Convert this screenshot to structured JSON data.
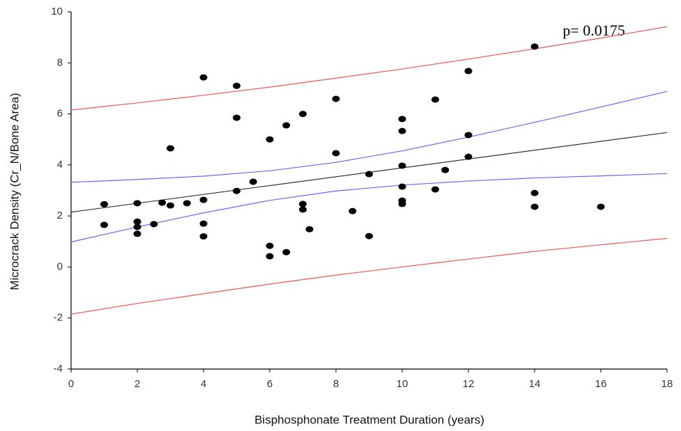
{
  "chart_data": {
    "type": "scatter",
    "x_label": "Bisphosphonate Treatment Duration (years)",
    "y_label": "Microcrack Density (Cr_N/Bone Area)",
    "annotation": "p= 0.0175",
    "xlim": [
      0,
      18
    ],
    "xticks": [
      0,
      2,
      4,
      6,
      8,
      10,
      12,
      14,
      16,
      18
    ],
    "ylim": [
      -4,
      10
    ],
    "yticks": [
      -4,
      -2,
      0,
      2,
      4,
      6,
      8,
      10
    ],
    "grid": false,
    "series": [
      {
        "type": "scatter",
        "color": "#000000",
        "x": [
          1,
          1,
          2,
          2,
          2,
          2,
          2.5,
          2.75,
          3,
          3,
          3.5,
          4,
          4,
          4,
          4,
          5,
          5,
          5,
          5.5,
          6,
          6,
          6,
          6.5,
          6.5,
          7,
          7,
          7,
          7.2,
          8,
          8,
          8.5,
          9,
          9,
          10,
          10,
          10,
          10,
          10,
          10,
          11,
          11,
          11.3,
          12,
          12,
          12,
          14,
          14,
          14,
          16
        ],
        "values": [
          2.46,
          1.65,
          2.5,
          1.78,
          1.57,
          1.3,
          1.68,
          2.52,
          2.41,
          4.65,
          2.5,
          7.43,
          2.63,
          1.7,
          1.2,
          7.1,
          5.85,
          2.98,
          3.34,
          5.0,
          0.83,
          0.42,
          5.55,
          0.58,
          6.0,
          2.47,
          2.25,
          1.48,
          6.59,
          4.46,
          2.19,
          3.64,
          1.21,
          5.8,
          5.33,
          3.97,
          3.15,
          2.6,
          2.47,
          6.56,
          3.04,
          3.8,
          7.68,
          5.17,
          4.32,
          8.64,
          2.9,
          2.36,
          2.36
        ]
      },
      {
        "type": "line",
        "color": "#333333",
        "x": [
          0,
          18
        ],
        "values": [
          2.15,
          5.27
        ]
      },
      {
        "type": "line",
        "color": "#6666ff",
        "x": [
          0,
          2,
          4,
          6,
          8,
          10,
          12,
          14,
          16,
          18
        ],
        "values": [
          3.32,
          3.43,
          3.56,
          3.77,
          4.1,
          4.55,
          5.09,
          5.67,
          6.27,
          6.88
        ]
      },
      {
        "type": "line",
        "color": "#6666ff",
        "x": [
          0,
          2,
          4,
          6,
          8,
          10,
          12,
          14,
          16,
          18
        ],
        "values": [
          0.98,
          1.57,
          2.12,
          2.61,
          2.98,
          3.21,
          3.37,
          3.49,
          3.57,
          3.66
        ]
      },
      {
        "type": "line",
        "color": "#ee5555",
        "x": [
          0,
          2,
          4,
          6,
          8,
          10,
          12,
          14,
          16,
          18
        ],
        "values": [
          6.15,
          6.43,
          6.73,
          7.05,
          7.4,
          7.76,
          8.15,
          8.55,
          8.97,
          9.42
        ]
      },
      {
        "type": "line",
        "color": "#ee5555",
        "x": [
          0,
          2,
          4,
          6,
          8,
          10,
          12,
          14,
          16,
          18
        ],
        "values": [
          -1.85,
          -1.43,
          -1.05,
          -0.67,
          -0.32,
          0.0,
          0.31,
          0.61,
          0.87,
          1.12
        ]
      }
    ]
  }
}
